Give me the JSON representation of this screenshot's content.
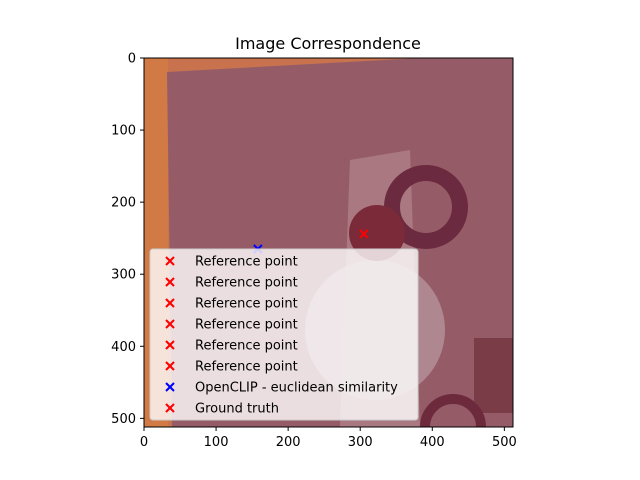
{
  "chart_data": {
    "type": "scatter",
    "title": "Image Correspondence",
    "xlabel": "",
    "ylabel": "",
    "xlim": [
      0,
      512
    ],
    "ylim": [
      512,
      0
    ],
    "y_inverted": true,
    "xticks": [
      0,
      100,
      200,
      300,
      400,
      500
    ],
    "yticks": [
      0,
      100,
      200,
      300,
      400,
      500
    ],
    "grid": false,
    "legend_placement": "lower-left",
    "background": "photo image (pinkish-red tinted scene)",
    "series": [
      {
        "name": "Reference point",
        "marker": "x",
        "color": "#ff0000",
        "points": []
      },
      {
        "name": "Reference point",
        "marker": "x",
        "color": "#ff0000",
        "points": []
      },
      {
        "name": "Reference point",
        "marker": "x",
        "color": "#ff0000",
        "points": []
      },
      {
        "name": "Reference point",
        "marker": "x",
        "color": "#ff0000",
        "points": []
      },
      {
        "name": "Reference point",
        "marker": "x",
        "color": "#ff0000",
        "points": []
      },
      {
        "name": "Reference point",
        "marker": "x",
        "color": "#ff0000",
        "points": []
      },
      {
        "name": "OpenCLIP - euclidean similarity",
        "marker": "x",
        "color": "#0000ff",
        "points": [
          [
            158,
            265
          ]
        ]
      },
      {
        "name": "Ground truth",
        "marker": "x",
        "color": "#ff0000",
        "points": [
          [
            305,
            244
          ]
        ]
      }
    ]
  }
}
